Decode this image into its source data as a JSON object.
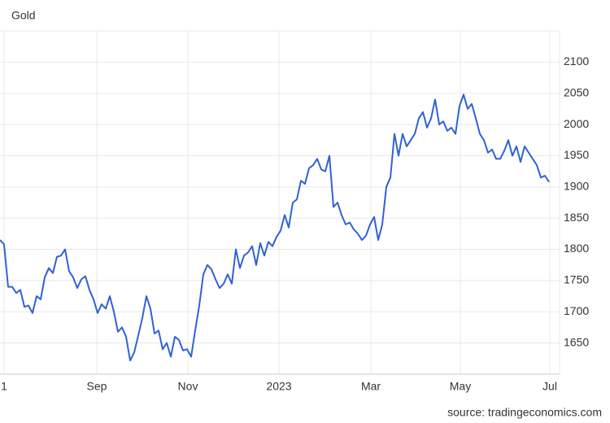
{
  "chart_data": {
    "type": "line",
    "title": "Gold",
    "source": "source: tradingeconomics.com",
    "x_labels": [
      "1",
      "Sep",
      "Nov",
      "2023",
      "Mar",
      "May",
      "Jul"
    ],
    "series": [
      {
        "name": "Gold",
        "color": "#2f62d6",
        "values": [
          1815,
          1808,
          1740,
          1740,
          1730,
          1735,
          1708,
          1710,
          1698,
          1725,
          1720,
          1755,
          1770,
          1762,
          1788,
          1790,
          1800,
          1765,
          1755,
          1738,
          1752,
          1757,
          1735,
          1720,
          1698,
          1712,
          1705,
          1725,
          1700,
          1668,
          1675,
          1660,
          1622,
          1635,
          1662,
          1690,
          1725,
          1705,
          1665,
          1670,
          1640,
          1650,
          1628,
          1660,
          1655,
          1638,
          1640,
          1628,
          1670,
          1710,
          1760,
          1775,
          1768,
          1752,
          1738,
          1745,
          1760,
          1745,
          1800,
          1770,
          1790,
          1795,
          1805,
          1775,
          1810,
          1790,
          1812,
          1805,
          1820,
          1830,
          1855,
          1835,
          1875,
          1880,
          1910,
          1905,
          1930,
          1935,
          1945,
          1928,
          1925,
          1950,
          1868,
          1875,
          1855,
          1840,
          1843,
          1832,
          1825,
          1815,
          1822,
          1840,
          1852,
          1815,
          1840,
          1900,
          1915,
          1985,
          1950,
          1985,
          1965,
          1975,
          1985,
          2010,
          2020,
          1995,
          2010,
          2040,
          2000,
          2005,
          1990,
          1995,
          1985,
          2030,
          2048,
          2025,
          2033,
          2010,
          1985,
          1975,
          1955,
          1960,
          1945,
          1945,
          1958,
          1975,
          1950,
          1965,
          1940,
          1965,
          1955,
          1945,
          1935,
          1915,
          1918,
          1908
        ]
      }
    ],
    "ylim": [
      1600,
      2150
    ],
    "yticks": [
      1650,
      1700,
      1750,
      1800,
      1850,
      1900,
      1950,
      2000,
      2050,
      2100
    ],
    "grid": true
  }
}
